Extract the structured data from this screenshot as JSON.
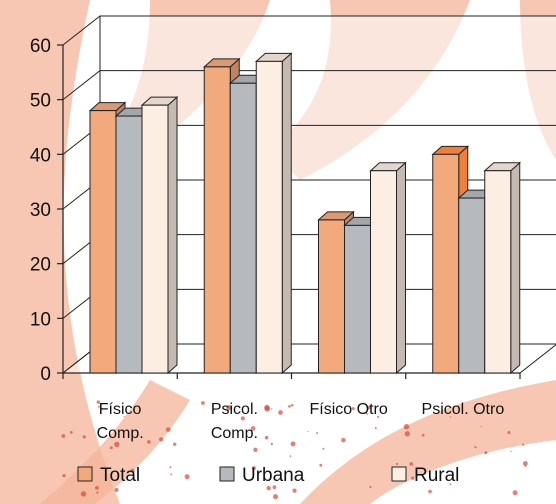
{
  "chart_data": {
    "type": "bar",
    "style": "3d-clustered",
    "categories": [
      [
        "Físico",
        "Comp."
      ],
      [
        "Psicol.",
        "Comp."
      ],
      [
        "Físico Otro"
      ],
      [
        "Psicol. Otro"
      ]
    ],
    "series": [
      {
        "name": "Total",
        "values": [
          48,
          56,
          28,
          40
        ],
        "color": "#f2aa7c"
      },
      {
        "name": "Urbana",
        "values": [
          47,
          53,
          27,
          32
        ],
        "color": "#b6b9bd"
      },
      {
        "name": "Rural",
        "values": [
          49,
          57,
          37,
          37
        ],
        "color": "#fdeee3"
      }
    ],
    "highlight_color": "#ef7f3a",
    "ylim": [
      0,
      60
    ],
    "yticks": [
      0,
      10,
      20,
      30,
      40,
      50,
      60
    ],
    "grid": true,
    "legend_position": "bottom",
    "title": "",
    "xlabel": "",
    "ylabel": ""
  },
  "background": {
    "base": "#ffffff",
    "stripe_color": "#f4b49a",
    "splatter_color": "#d94a3a"
  }
}
